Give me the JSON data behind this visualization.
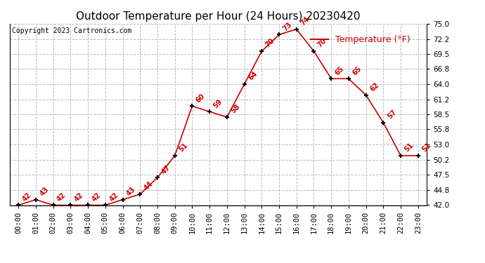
{
  "title": "Outdoor Temperature per Hour (24 Hours) 20230420",
  "copyright_text": "Copyright 2023 Cartronics.com",
  "legend_label": "Temperature (°F)",
  "hours": [
    "00:00",
    "01:00",
    "02:00",
    "03:00",
    "04:00",
    "05:00",
    "06:00",
    "07:00",
    "08:00",
    "09:00",
    "10:00",
    "11:00",
    "12:00",
    "13:00",
    "14:00",
    "15:00",
    "16:00",
    "17:00",
    "18:00",
    "19:00",
    "20:00",
    "21:00",
    "22:00",
    "23:00"
  ],
  "temps": [
    42,
    43,
    42,
    42,
    42,
    42,
    43,
    44,
    47,
    51,
    60,
    59,
    58,
    64,
    70,
    73,
    74,
    70,
    65,
    65,
    62,
    57,
    51,
    51
  ],
  "line_color": "#cc0000",
  "marker_color": "#000000",
  "label_color": "#cc0000",
  "grid_color": "#bbbbbb",
  "background_color": "#ffffff",
  "ylim": [
    42.0,
    75.0
  ],
  "yticks": [
    42.0,
    44.8,
    47.5,
    50.2,
    53.0,
    55.8,
    58.5,
    61.2,
    64.0,
    66.8,
    69.5,
    72.2,
    75.0
  ],
  "title_fontsize": 11,
  "copyright_fontsize": 7,
  "legend_fontsize": 9,
  "label_fontsize": 7,
  "tick_fontsize": 7.5
}
